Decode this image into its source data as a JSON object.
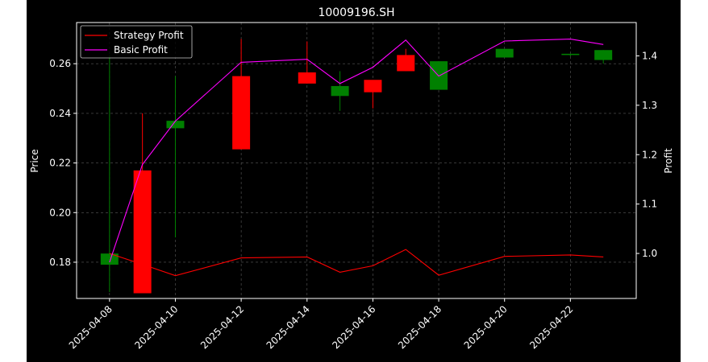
{
  "chart_data": {
    "type": "candlestick",
    "title": "10009196.SH",
    "xlabel": "",
    "ylabel": "Price",
    "ylabel_right": "Profit",
    "x_ticks": [
      "2025-04-08",
      "2025-04-10",
      "2025-04-12",
      "2025-04-14",
      "2025-04-16",
      "2025-04-18",
      "2025-04-20",
      "2025-04-22"
    ],
    "y_ticks": [
      "0.18",
      "0.20",
      "0.22",
      "0.24",
      "0.26"
    ],
    "y2_ticks": [
      "1.0",
      "1.1",
      "1.2",
      "1.3",
      "1.4"
    ],
    "ylim": [
      0.1654,
      0.2766
    ],
    "y2lim": [
      0.9089,
      1.4675
    ],
    "grid": true,
    "legend_position": "top-left",
    "colors": {
      "up": "#ff0000",
      "down": "#008000",
      "strategy": "#ff0000",
      "basic": "#ff00ff",
      "background": "#000000",
      "axes": "#ffffff",
      "grid": "#808080"
    },
    "candles": [
      {
        "date": "2025-04-08",
        "open": 0.1835,
        "high": 0.2635,
        "low": 0.168,
        "close": 0.179
      },
      {
        "date": "2025-04-09",
        "open": 0.1675,
        "high": 0.24,
        "low": 0.1675,
        "close": 0.217
      },
      {
        "date": "2025-04-10",
        "open": 0.237,
        "high": 0.255,
        "low": 0.19,
        "close": 0.234
      },
      {
        "date": "2025-04-12",
        "open": 0.2255,
        "high": 0.27,
        "low": 0.2255,
        "close": 0.255
      },
      {
        "date": "2025-04-14",
        "open": 0.252,
        "high": 0.269,
        "low": 0.252,
        "close": 0.2565
      },
      {
        "date": "2025-04-15",
        "open": 0.251,
        "high": 0.257,
        "low": 0.241,
        "close": 0.247
      },
      {
        "date": "2025-04-16",
        "open": 0.2485,
        "high": 0.253,
        "low": 0.242,
        "close": 0.2535
      },
      {
        "date": "2025-04-17",
        "open": 0.257,
        "high": 0.266,
        "low": 0.257,
        "close": 0.2635
      },
      {
        "date": "2025-04-18",
        "open": 0.261,
        "high": 0.261,
        "low": 0.2495,
        "close": 0.2495
      },
      {
        "date": "2025-04-20",
        "open": 0.266,
        "high": 0.266,
        "low": 0.2625,
        "close": 0.2625
      },
      {
        "date": "2025-04-22",
        "open": 0.264,
        "high": 0.264,
        "low": 0.263,
        "close": 0.2635
      },
      {
        "date": "2025-04-23",
        "open": 0.2655,
        "high": 0.2655,
        "low": 0.26,
        "close": 0.2615
      }
    ],
    "series": [
      {
        "name": "Strategy Profit",
        "axis": "right",
        "x": [
          "2025-04-08",
          "2025-04-09",
          "2025-04-10",
          "2025-04-12",
          "2025-04-14",
          "2025-04-15",
          "2025-04-16",
          "2025-04-17",
          "2025-04-18",
          "2025-04-20",
          "2025-04-22",
          "2025-04-23"
        ],
        "values": [
          1.0,
          0.978,
          0.955,
          0.991,
          0.993,
          0.962,
          0.975,
          1.008,
          0.956,
          0.994,
          0.997,
          0.993
        ]
      },
      {
        "name": "Basic Profit",
        "axis": "right",
        "x": [
          "2025-04-08",
          "2025-04-09",
          "2025-04-10",
          "2025-04-12",
          "2025-04-14",
          "2025-04-15",
          "2025-04-16",
          "2025-04-17",
          "2025-04-18",
          "2025-04-20",
          "2025-04-22",
          "2025-04-23"
        ],
        "values": [
          0.982,
          1.18,
          1.268,
          1.387,
          1.393,
          1.344,
          1.377,
          1.432,
          1.359,
          1.43,
          1.434,
          1.423
        ]
      }
    ]
  }
}
